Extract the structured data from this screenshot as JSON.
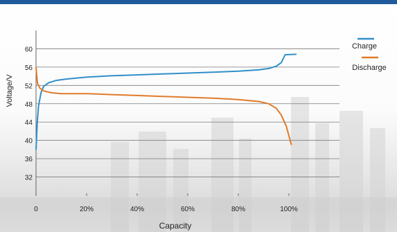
{
  "chart_data": {
    "type": "line",
    "xlabel": "Capacity",
    "ylabel": "Voltage/V",
    "xlim": [
      0,
      1.2
    ],
    "ylim": [
      28,
      64
    ],
    "x_ticks": [
      {
        "value": 0,
        "label": "0"
      },
      {
        "value": 0.2,
        "label": "20%"
      },
      {
        "value": 0.4,
        "label": "40%"
      },
      {
        "value": 0.6,
        "label": "60%"
      },
      {
        "value": 0.8,
        "label": "80%"
      },
      {
        "value": 1.0,
        "label": "100%"
      }
    ],
    "y_ticks": [
      {
        "value": 32,
        "label": "32"
      },
      {
        "value": 36,
        "label": "36"
      },
      {
        "value": 40,
        "label": "40"
      },
      {
        "value": 44,
        "label": "44"
      },
      {
        "value": 48,
        "label": "48"
      },
      {
        "value": 52,
        "label": "52"
      },
      {
        "value": 56,
        "label": "56"
      },
      {
        "value": 60,
        "label": "60"
      }
    ],
    "grid": "horizontal",
    "legend_position": "right",
    "series": [
      {
        "name": "Charge",
        "color": "#2f8fc9",
        "points": [
          [
            0.0,
            38.0
          ],
          [
            0.005,
            44.0
          ],
          [
            0.01,
            47.5
          ],
          [
            0.02,
            50.5
          ],
          [
            0.03,
            51.8
          ],
          [
            0.05,
            52.6
          ],
          [
            0.08,
            53.1
          ],
          [
            0.12,
            53.4
          ],
          [
            0.2,
            53.8
          ],
          [
            0.3,
            54.1
          ],
          [
            0.4,
            54.3
          ],
          [
            0.5,
            54.5
          ],
          [
            0.6,
            54.7
          ],
          [
            0.7,
            54.9
          ],
          [
            0.8,
            55.1
          ],
          [
            0.88,
            55.4
          ],
          [
            0.92,
            55.7
          ],
          [
            0.95,
            56.2
          ],
          [
            0.97,
            57.0
          ],
          [
            0.985,
            58.7
          ],
          [
            1.03,
            58.8
          ]
        ]
      },
      {
        "name": "Discharge",
        "color": "#e07b2a",
        "points": [
          [
            0.0,
            56.0
          ],
          [
            0.003,
            54.0
          ],
          [
            0.006,
            52.4
          ],
          [
            0.015,
            51.4
          ],
          [
            0.03,
            50.8
          ],
          [
            0.06,
            50.4
          ],
          [
            0.1,
            50.2
          ],
          [
            0.2,
            50.2
          ],
          [
            0.3,
            50.0
          ],
          [
            0.4,
            49.8
          ],
          [
            0.5,
            49.6
          ],
          [
            0.6,
            49.4
          ],
          [
            0.7,
            49.2
          ],
          [
            0.8,
            48.9
          ],
          [
            0.88,
            48.5
          ],
          [
            0.92,
            48.0
          ],
          [
            0.95,
            47.0
          ],
          [
            0.97,
            45.5
          ],
          [
            0.99,
            43.0
          ],
          [
            1.0,
            41.0
          ],
          [
            1.01,
            39.0
          ]
        ]
      }
    ]
  }
}
